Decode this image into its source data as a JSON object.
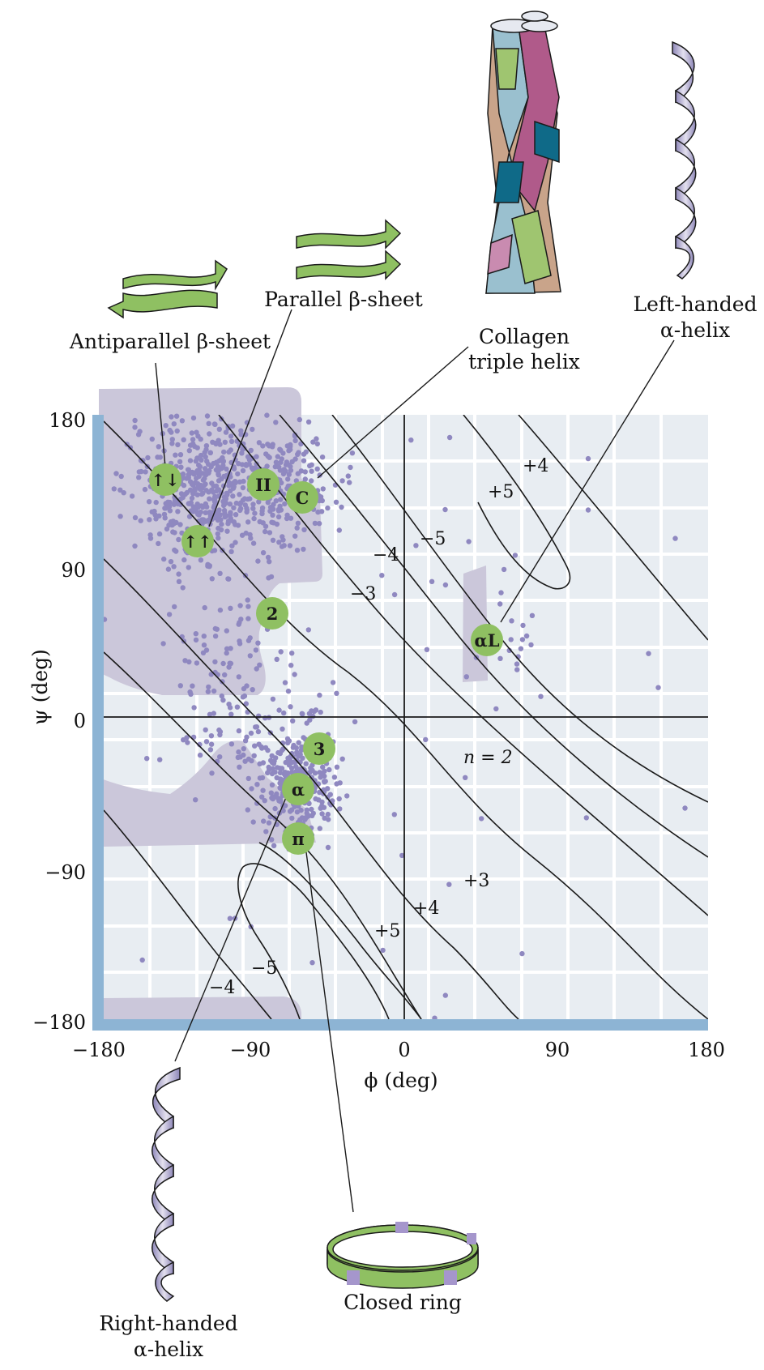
{
  "labels": {
    "antiparallel": "Antiparallel β-sheet",
    "parallel": "Parallel β-sheet",
    "collagen_1": "Collagen",
    "collagen_2": "triple helix",
    "left_helix_1": "Left-handed",
    "left_helix_2": "α-helix",
    "right_helix_1": "Right-handed",
    "right_helix_2": "α-helix",
    "closed_ring": "Closed ring"
  },
  "axes": {
    "xlabel": "ϕ (deg)",
    "ylabel": "ψ (deg)",
    "x_ticks": [
      "−180",
      "−90",
      "0",
      "90",
      "180"
    ],
    "y_ticks": [
      "180",
      "90",
      "0",
      "−90",
      "−180"
    ],
    "xlim": [
      -180,
      180
    ],
    "ylim": [
      -180,
      180
    ]
  },
  "markers": [
    {
      "id": "antiparallel",
      "text": "↑↓",
      "phi": -140,
      "psi": 140
    },
    {
      "id": "parallel",
      "text": "↑↑",
      "phi": -120,
      "psi": 112
    },
    {
      "id": "II",
      "text": "II",
      "phi": -80,
      "psi": 140
    },
    {
      "id": "C",
      "text": "C",
      "phi": -60,
      "psi": 132
    },
    {
      "id": "2",
      "text": "2",
      "phi": -78,
      "psi": 64
    },
    {
      "id": "3",
      "text": "3",
      "phi": -50,
      "psi": -18
    },
    {
      "id": "alpha",
      "text": "α",
      "phi": -63,
      "psi": -41
    },
    {
      "id": "pi",
      "text": "π",
      "phi": -63,
      "psi": -70
    },
    {
      "id": "alphaL",
      "text": "αL",
      "phi": 50,
      "psi": 48
    }
  ],
  "contour_labels": [
    "+4",
    "+5",
    "−5",
    "−4",
    "−3",
    "n = 2",
    "+3",
    "+4",
    "+5",
    "−5",
    "−4"
  ],
  "colors": {
    "panel": "#e8edf2",
    "region": "#cbc7da",
    "dot": "#8f88c0",
    "marker": "#8fc062",
    "axis_bar": "#8db4d4"
  }
}
